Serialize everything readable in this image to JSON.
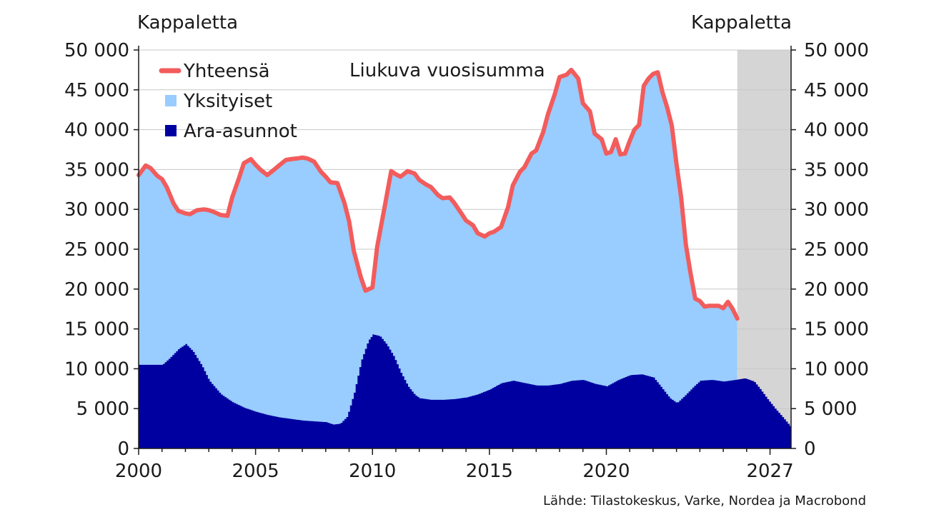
{
  "chart_data": {
    "type": "area",
    "title": "Liukuva vuosisumma",
    "ylabel_left": "Kappaletta",
    "ylabel_right": "Kappaletta",
    "source": "Lähde: Tilastokeskus, Varke, Nordea ja Macrobond",
    "ylim": [
      0,
      50000
    ],
    "yticks": [
      0,
      5000,
      10000,
      15000,
      20000,
      25000,
      30000,
      35000,
      40000,
      45000,
      50000
    ],
    "ytick_labels": [
      "0",
      "5 000",
      "10 000",
      "15 000",
      "20 000",
      "25 000",
      "30 000",
      "35 000",
      "40 000",
      "45 000",
      "50 000"
    ],
    "xlim": [
      2000,
      2027.9
    ],
    "xticks": [
      2000,
      2005,
      2010,
      2015,
      2020,
      2027
    ],
    "xtick_labels": [
      "2000",
      "2005",
      "2010",
      "2015",
      "2020",
      "2027"
    ],
    "forecast_shade": {
      "from": 2025.6,
      "to": 2027.9
    },
    "grid": "horizontal",
    "legend_position": "top-left",
    "colors": {
      "total": "#f25c5c",
      "private": "#99ccff",
      "ara": "#0000a0",
      "shade": "#d5d5d5",
      "grid": "#c8c8c8"
    },
    "series": [
      {
        "name": "Yhteensä",
        "kind": "line",
        "color": "#f25c5c",
        "x": [
          2000,
          2000.3,
          2000.5,
          2000.8,
          2001,
          2001.2,
          2001.5,
          2001.7,
          2002,
          2002.2,
          2002.5,
          2002.8,
          2003,
          2003.2,
          2003.5,
          2003.8,
          2004,
          2004.3,
          2004.5,
          2004.8,
          2005,
          2005.2,
          2005.5,
          2005.8,
          2006,
          2006.3,
          2006.5,
          2006.8,
          2007,
          2007.2,
          2007.5,
          2007.8,
          2008,
          2008.2,
          2008.5,
          2008.8,
          2009,
          2009.2,
          2009.5,
          2009.7,
          2010,
          2010.2,
          2010.5,
          2010.8,
          2011,
          2011.2,
          2011.5,
          2011.8,
          2012,
          2012.3,
          2012.5,
          2012.8,
          2013,
          2013.3,
          2013.5,
          2013.8,
          2014,
          2014.3,
          2014.5,
          2014.8,
          2015,
          2015.2,
          2015.5,
          2015.8,
          2016,
          2016.3,
          2016.5,
          2016.8,
          2017,
          2017.3,
          2017.5,
          2017.8,
          2018,
          2018.3,
          2018.5,
          2018.8,
          2019,
          2019.3,
          2019.5,
          2019.8,
          2020,
          2020.2,
          2020.4,
          2020.6,
          2020.8,
          2021,
          2021.2,
          2021.4,
          2021.6,
          2021.8,
          2022,
          2022.2,
          2022.4,
          2022.6,
          2022.8,
          2023,
          2023.2,
          2023.4,
          2023.6,
          2023.8,
          2024,
          2024.2,
          2024.4,
          2024.6,
          2024.8,
          2025,
          2025.2,
          2025.4,
          2025.6
        ],
        "y": [
          34300,
          35500,
          35200,
          34200,
          33800,
          32800,
          30700,
          29800,
          29500,
          29400,
          29900,
          30000,
          29900,
          29700,
          29300,
          29200,
          31500,
          34000,
          35800,
          36300,
          35600,
          35000,
          34300,
          35000,
          35500,
          36200,
          36300,
          36400,
          36500,
          36400,
          36000,
          34700,
          34100,
          33400,
          33300,
          30800,
          28500,
          24800,
          21500,
          19800,
          20200,
          25300,
          30000,
          34800,
          34400,
          34100,
          34800,
          34500,
          33700,
          33100,
          32800,
          31800,
          31400,
          31500,
          30800,
          29500,
          28600,
          28000,
          27000,
          26600,
          27000,
          27200,
          27800,
          30300,
          33000,
          34700,
          35300,
          37000,
          37400,
          39700,
          41900,
          44500,
          46600,
          46900,
          47500,
          46400,
          43300,
          42300,
          39500,
          38800,
          37000,
          37200,
          38800,
          36900,
          37000,
          38600,
          40000,
          40600,
          45500,
          46400,
          47000,
          47200,
          44700,
          42800,
          40500,
          35700,
          31500,
          25600,
          22000,
          18800,
          18500,
          17800,
          17900,
          17900,
          17900,
          17600,
          18400,
          17500,
          16300
        ]
      },
      {
        "name": "Yksityiset",
        "kind": "area",
        "color": "#99ccff",
        "note_x": "stacked between Ara-asunnot and Yhteensä, 2000–2025.6"
      },
      {
        "name": "Ara-asunnot",
        "kind": "area",
        "color": "#0000a0",
        "x": [
          2000,
          2001,
          2001.3,
          2001.7,
          2002,
          2002.3,
          2002.7,
          2003,
          2003.5,
          2004,
          2004.5,
          2005,
          2005.5,
          2006,
          2006.5,
          2007,
          2007.5,
          2008,
          2008.3,
          2008.6,
          2008.9,
          2009.2,
          2009.5,
          2009.8,
          2010,
          2010.3,
          2010.6,
          2010.9,
          2011.2,
          2011.5,
          2011.8,
          2012,
          2012.5,
          2013,
          2013.5,
          2014,
          2014.5,
          2015,
          2015.5,
          2016,
          2016.5,
          2017,
          2017.5,
          2018,
          2018.5,
          2019,
          2019.5,
          2020,
          2020.5,
          2021,
          2021.5,
          2022,
          2022.3,
          2022.7,
          2023,
          2023.3,
          2023.7,
          2024,
          2024.5,
          2025,
          2025.5,
          2025.9,
          2026.3,
          2026.6,
          2026.9,
          2027.2,
          2027.5,
          2027.9
        ],
        "y": [
          10500,
          10500,
          11300,
          12500,
          13100,
          12200,
          10300,
          8500,
          6800,
          5800,
          5100,
          4600,
          4200,
          3900,
          3700,
          3500,
          3400,
          3300,
          3000,
          3100,
          4000,
          7000,
          11000,
          13500,
          14300,
          14100,
          13000,
          11500,
          9500,
          7800,
          6700,
          6300,
          6100,
          6100,
          6200,
          6400,
          6800,
          7400,
          8200,
          8500,
          8200,
          7900,
          7900,
          8100,
          8500,
          8600,
          8100,
          7800,
          8600,
          9200,
          9300,
          8900,
          7800,
          6300,
          5700,
          6500,
          7700,
          8500,
          8600,
          8400,
          8600,
          8800,
          8400,
          7300,
          6100,
          5000,
          4000,
          2600
        ]
      }
    ]
  }
}
